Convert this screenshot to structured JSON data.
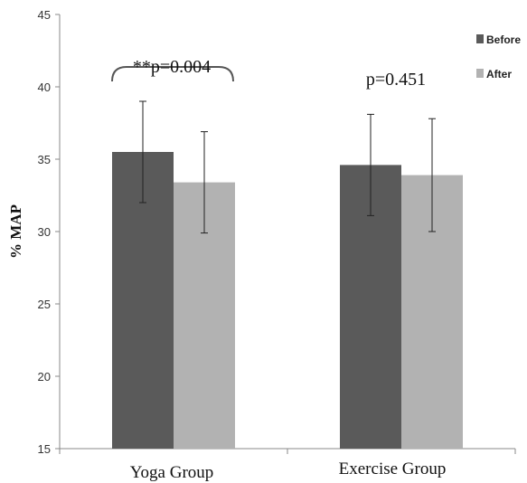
{
  "chart_data": {
    "type": "bar",
    "categories": [
      "Yoga Group",
      "Exercise Group"
    ],
    "series": [
      {
        "name": "Before",
        "color": "#5a5a5a",
        "values": [
          35.5,
          34.6
        ],
        "error": [
          3.5,
          3.5
        ]
      },
      {
        "name": "After",
        "color": "#b2b2b2",
        "values": [
          33.4,
          33.9
        ],
        "error": [
          3.5,
          3.9
        ]
      }
    ],
    "ylabel": "% MAP",
    "ylim": [
      15,
      45
    ],
    "yticks": [
      15,
      20,
      25,
      30,
      35,
      40,
      45
    ],
    "ytick_labels": [
      "15",
      "20",
      "25",
      "30",
      "35",
      "40",
      "45"
    ],
    "legend_position": "top-right",
    "grid": false,
    "annotations": [
      "**p=0.004",
      "p=0.451"
    ]
  }
}
